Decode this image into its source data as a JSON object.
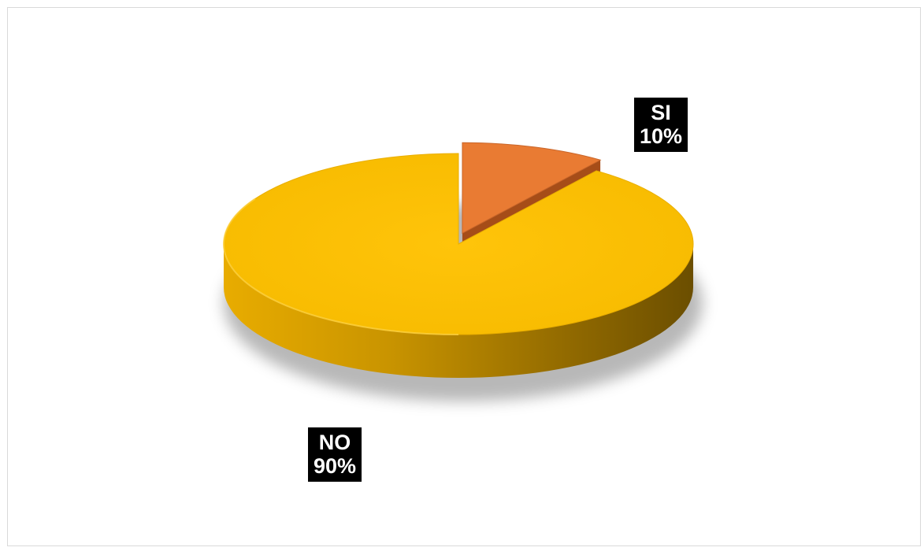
{
  "chart_data": {
    "type": "pie",
    "style": "3d-exploded",
    "title": "",
    "legend": "none",
    "slices": [
      {
        "label": "SI",
        "value": 10,
        "percent_label": "10%",
        "color": "#E97B33",
        "exploded": true
      },
      {
        "label": "NO",
        "value": 90,
        "percent_label": "90%",
        "color": "#F7BB00",
        "exploded": false
      }
    ]
  }
}
